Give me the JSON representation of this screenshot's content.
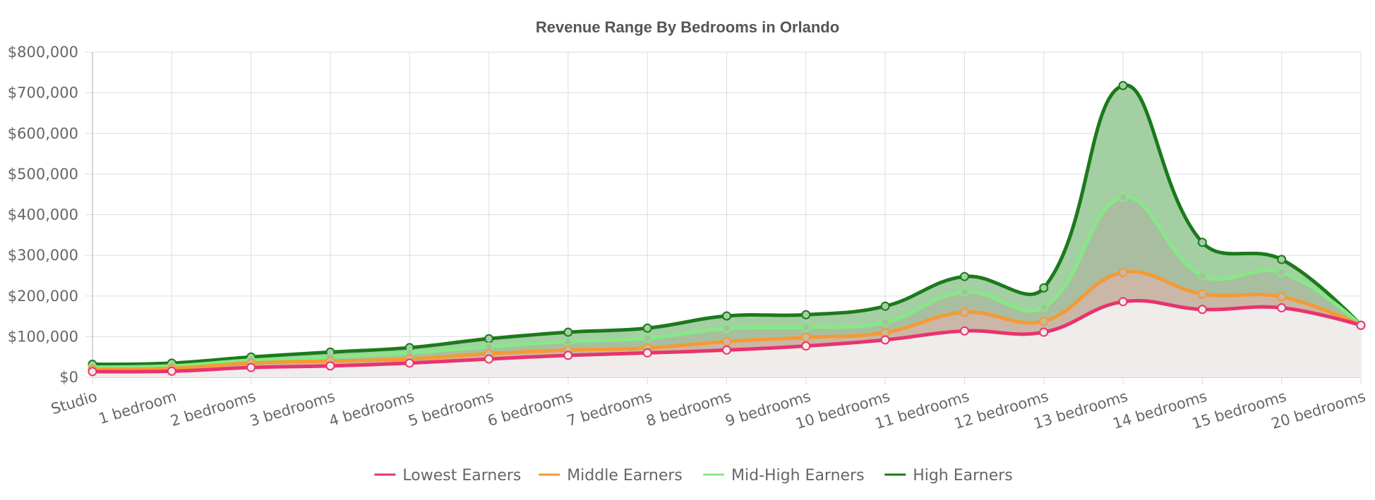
{
  "chart_data": {
    "type": "area",
    "title": "Revenue Range By Bedrooms in Orlando",
    "xlabel": "",
    "ylabel": "",
    "categories": [
      "Studio",
      "1 bedroom",
      "2 bedrooms",
      "3 bedrooms",
      "4 bedrooms",
      "5 bedrooms",
      "6 bedrooms",
      "7 bedrooms",
      "8 bedrooms",
      "9 bedrooms",
      "10 bedrooms",
      "11 bedrooms",
      "12 bedrooms",
      "13 bedrooms",
      "14 bedrooms",
      "15 bedrooms",
      "20 bedrooms"
    ],
    "ylim": [
      0,
      800000
    ],
    "yticks": [
      0,
      100000,
      200000,
      300000,
      400000,
      500000,
      600000,
      700000,
      800000
    ],
    "ytick_labels": [
      "$0",
      "$100,000",
      "$200,000",
      "$300,000",
      "$400,000",
      "$500,000",
      "$600,000",
      "$700,000",
      "$800,000"
    ],
    "grid": true,
    "legend_position": "bottom",
    "series": [
      {
        "name": "Lowest Earners",
        "color": "#e8336e",
        "fill": "#f0ecec",
        "values": [
          14000,
          15000,
          24000,
          28000,
          35000,
          45000,
          54000,
          60000,
          67000,
          77000,
          92000,
          114000,
          111000,
          186000,
          167000,
          171000,
          128000
        ]
      },
      {
        "name": "Middle Earners",
        "color": "#f59a33",
        "fill": "#cbb7a7",
        "values": [
          20000,
          22000,
          35000,
          40000,
          45000,
          58000,
          67000,
          72000,
          88000,
          98000,
          110000,
          160000,
          138000,
          258000,
          205000,
          198000,
          128000
        ]
      },
      {
        "name": "Mid-High Earners",
        "color": "#86e986",
        "fill": "#a9bea0",
        "values": [
          25000,
          28000,
          42000,
          49000,
          60000,
          75000,
          88000,
          96000,
          120000,
          123000,
          135000,
          210000,
          172000,
          443000,
          250000,
          258000,
          128000
        ]
      },
      {
        "name": "High Earners",
        "color": "#1b7a1b",
        "fill": "#a3cfa3",
        "values": [
          32000,
          35000,
          50000,
          62000,
          73000,
          95000,
          111000,
          121000,
          151000,
          154000,
          175000,
          248000,
          220000,
          718000,
          332000,
          290000,
          128000
        ]
      }
    ]
  }
}
